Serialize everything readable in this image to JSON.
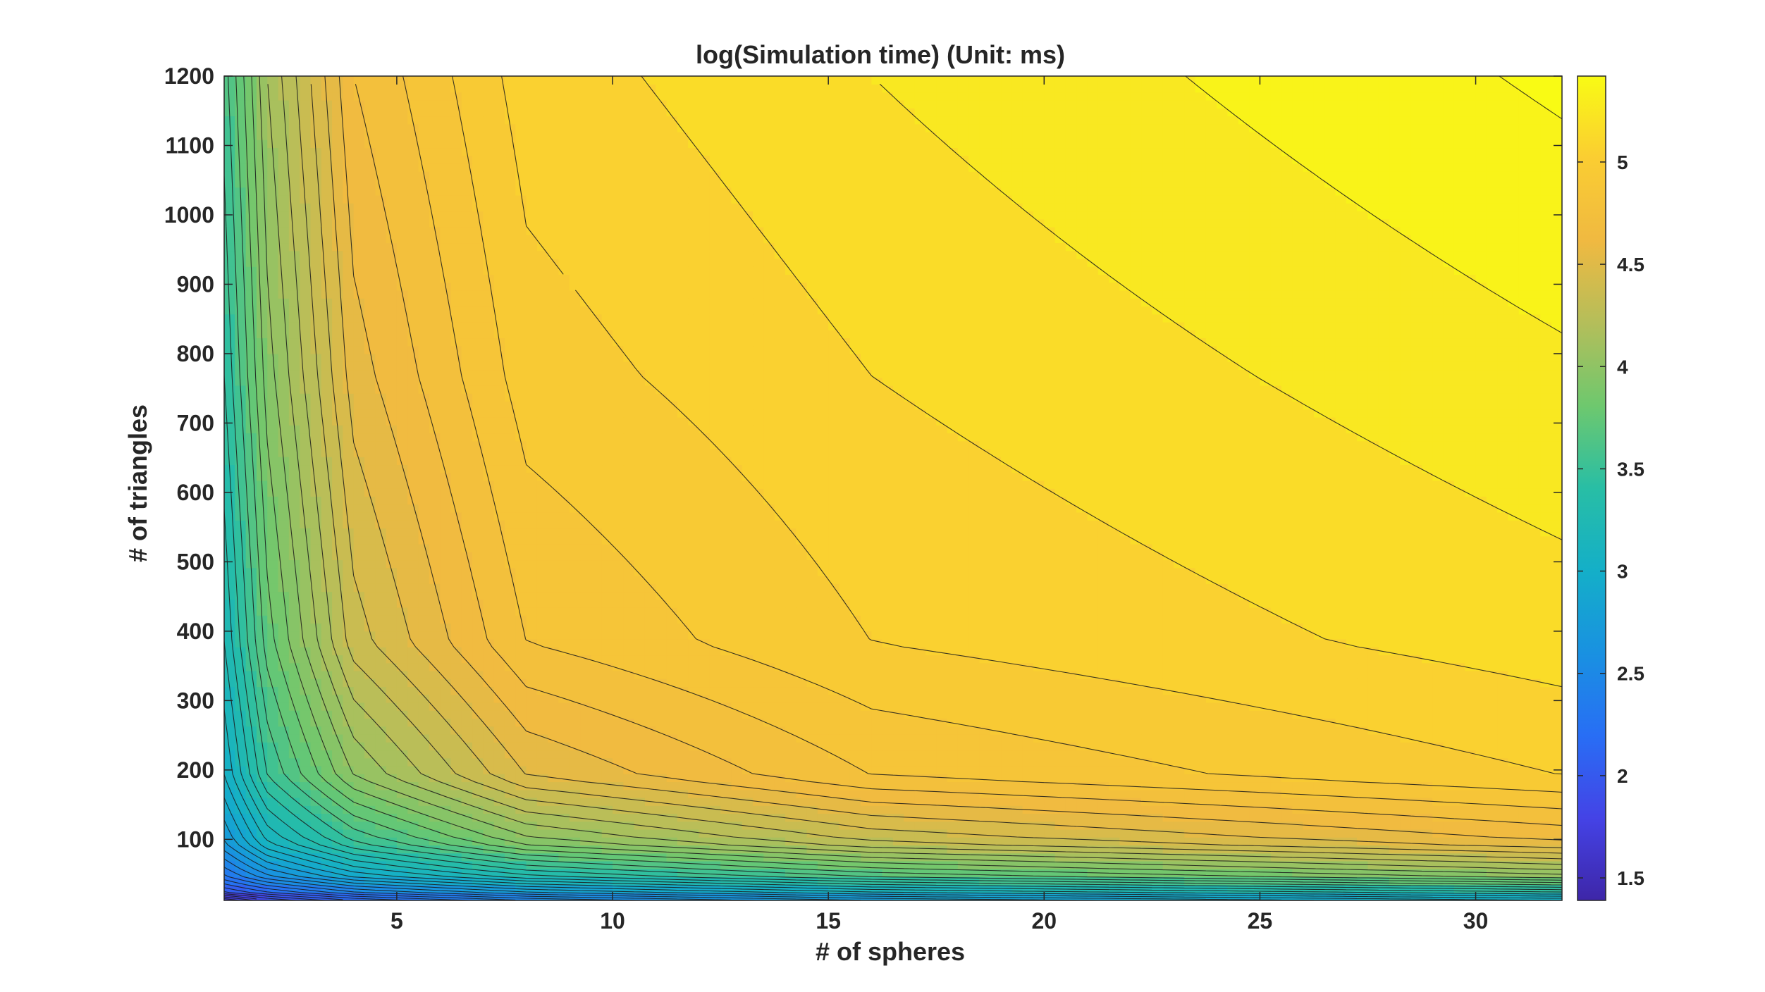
{
  "chart_data": {
    "type": "heatmap",
    "subtype": "filled-contour",
    "title": "log(Simulation time) (Unit: ms)",
    "xlabel": "# of spheres",
    "ylabel": "# of triangles",
    "colormap": "parula",
    "xlim": [
      1,
      32
    ],
    "ylim": [
      12,
      1200
    ],
    "x_ticks": [
      5,
      10,
      15,
      20,
      25,
      30
    ],
    "y_ticks": [
      100,
      200,
      300,
      400,
      500,
      600,
      700,
      800,
      900,
      1000,
      1100,
      1200
    ],
    "colorbar": {
      "range": [
        1.39,
        5.42
      ],
      "ticks": [
        1.5,
        2,
        2.5,
        3,
        3.5,
        4,
        4.5,
        5
      ]
    },
    "x": [
      1,
      2,
      4,
      8,
      16,
      32
    ],
    "y": [
      12,
      24,
      48,
      96,
      192,
      384,
      768,
      1200
    ],
    "z": [
      [
        1.39,
        1.7,
        2.0,
        2.3,
        2.6,
        2.9
      ],
      [
        1.9,
        2.1,
        2.4,
        2.7,
        3.0,
        3.3
      ],
      [
        2.3,
        2.6,
        2.95,
        3.3,
        3.65,
        4.0
      ],
      [
        2.7,
        3.1,
        3.5,
        3.95,
        4.3,
        4.6
      ],
      [
        3.0,
        3.5,
        4.0,
        4.5,
        4.8,
        5.0
      ],
      [
        3.2,
        3.75,
        4.35,
        4.8,
        5.0,
        5.15
      ],
      [
        3.4,
        3.95,
        4.55,
        4.95,
        5.1,
        5.28
      ],
      [
        3.55,
        4.1,
        4.7,
        5.05,
        5.2,
        5.42
      ]
    ],
    "contour_step": 0.1,
    "grid": false,
    "legend": "none"
  }
}
